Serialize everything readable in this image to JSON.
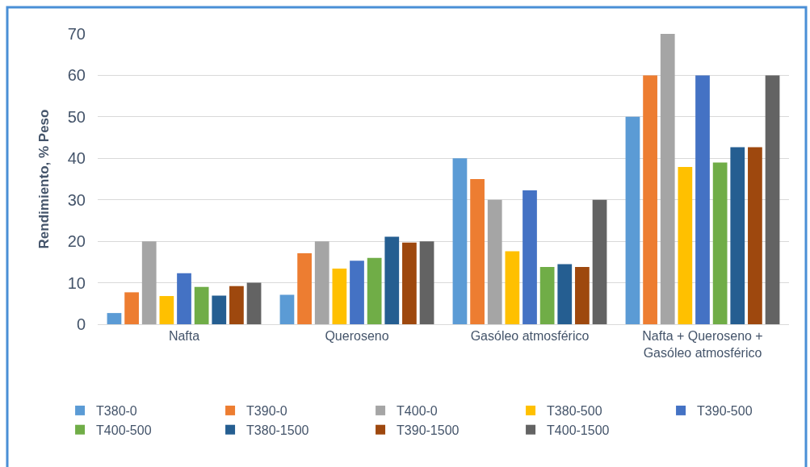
{
  "chart_data": {
    "type": "bar",
    "ylabel": "Rendimiento, % Peso",
    "categories": [
      "Nafta",
      "Queroseno",
      "Gasóleo atmosférico",
      "Nafta + Queroseno + Gasóleo atmosférico"
    ],
    "series": [
      {
        "name": "T380-0",
        "color": "#5b9bd5",
        "values": [
          2.7,
          7.1,
          40,
          50
        ]
      },
      {
        "name": "T390-0",
        "color": "#ed7d31",
        "values": [
          7.7,
          17.1,
          35,
          60
        ]
      },
      {
        "name": "T400-0",
        "color": "#a5a5a5",
        "values": [
          20,
          20,
          30,
          70
        ]
      },
      {
        "name": "T380-500",
        "color": "#ffc000",
        "values": [
          6.8,
          13.4,
          17.6,
          37.9
        ]
      },
      {
        "name": "T390-500",
        "color": "#4472c4",
        "values": [
          12.3,
          15.3,
          32.3,
          60
        ]
      },
      {
        "name": "T400-500",
        "color": "#70ad47",
        "values": [
          9.0,
          16.0,
          13.8,
          39.0
        ]
      },
      {
        "name": "T380-1500",
        "color": "#255e91",
        "values": [
          6.9,
          21.1,
          14.5,
          42.7
        ]
      },
      {
        "name": "T390-1500",
        "color": "#9e480e",
        "values": [
          9.2,
          19.7,
          13.8,
          42.7
        ]
      },
      {
        "name": "T400-1500",
        "color": "#636363",
        "values": [
          10,
          20,
          30,
          60
        ]
      }
    ],
    "ylim": [
      0,
      70
    ],
    "yticks": [
      0,
      10,
      20,
      30,
      40,
      50,
      60,
      70
    ],
    "grid": "y",
    "legend": "bottom"
  }
}
